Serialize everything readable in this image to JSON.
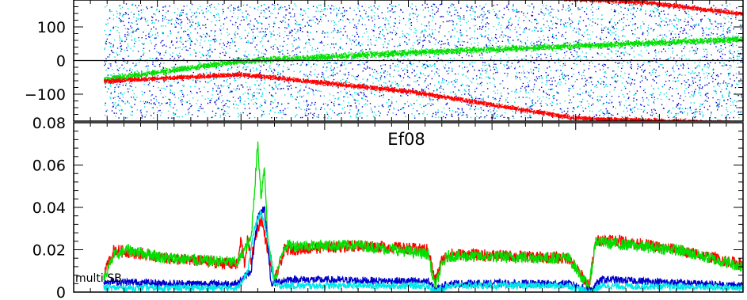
{
  "chart_data": [
    {
      "type": "scatter",
      "title": "",
      "xlabel": "",
      "ylabel": "",
      "ylim": [
        -180,
        180
      ],
      "yticks": [
        100,
        0,
        -100
      ],
      "ytick_labels": [
        "100",
        "0",
        "−100"
      ],
      "x_range": [
        0,
        1000
      ],
      "zero_line": true,
      "grid": false,
      "series": [
        {
          "color": "#0000cc",
          "kind": "random-scatter",
          "x_start": 45,
          "y_range": [
            -170,
            170
          ]
        },
        {
          "color": "#00e0e0",
          "kind": "random-scatter",
          "x_start": 45,
          "y_range": [
            -170,
            170
          ]
        },
        {
          "color": "#00e000",
          "kind": "band",
          "x": [
            45,
            250,
            500,
            750,
            1000
          ],
          "y": [
            -55,
            0,
            25,
            45,
            65
          ],
          "spread": 8
        },
        {
          "color": "#ff0000",
          "kind": "band",
          "x": [
            45,
            250,
            500,
            750,
            1000
          ],
          "y": [
            -60,
            -40,
            -90,
            -170,
            -185
          ],
          "spread": 6
        },
        {
          "color": "#ff0000",
          "kind": "band",
          "x": [
            730,
            850,
            1000
          ],
          "y": [
            185,
            175,
            140
          ],
          "spread": 6
        }
      ]
    },
    {
      "type": "line",
      "title": "Ef08",
      "xlabel": "",
      "ylabel": "",
      "ylim": [
        0,
        0.08
      ],
      "yticks": [
        0,
        0.02,
        0.04,
        0.06,
        0.08
      ],
      "ytick_labels": [
        "0",
        "0.02",
        "0.04",
        "0.06",
        "0.08"
      ],
      "x_range": [
        0,
        1000
      ],
      "annotation": "multi SB",
      "grid": false,
      "series": [
        {
          "color": "#ff0000",
          "x": [
            45,
            60,
            80,
            140,
            245,
            250,
            255,
            260,
            265,
            275,
            280,
            290,
            300,
            315,
            430,
            530,
            540,
            550,
            560,
            740,
            770,
            780,
            800,
            900,
            1000
          ],
          "y": [
            0.008,
            0.02,
            0.019,
            0.016,
            0.013,
            0.025,
            0.013,
            0.025,
            0.015,
            0.03,
            0.035,
            0.02,
            0.005,
            0.02,
            0.022,
            0.02,
            0.005,
            0.015,
            0.018,
            0.016,
            0.003,
            0.024,
            0.025,
            0.02,
            0.013
          ]
        },
        {
          "color": "#00e000",
          "x": [
            45,
            60,
            80,
            140,
            245,
            255,
            265,
            275,
            280,
            285,
            290,
            300,
            315,
            430,
            530,
            540,
            550,
            560,
            740,
            770,
            780,
            800,
            900,
            1000
          ],
          "y": [
            0.006,
            0.017,
            0.02,
            0.016,
            0.014,
            0.02,
            0.025,
            0.07,
            0.045,
            0.06,
            0.025,
            0.005,
            0.022,
            0.022,
            0.018,
            0.002,
            0.013,
            0.017,
            0.016,
            0.002,
            0.024,
            0.023,
            0.02,
            0.012
          ]
        },
        {
          "color": "#0000cc",
          "x": [
            45,
            150,
            245,
            265,
            275,
            285,
            295,
            320,
            530,
            540,
            560,
            740,
            770,
            790,
            1000
          ],
          "y": [
            0.005,
            0.004,
            0.004,
            0.01,
            0.035,
            0.04,
            0.004,
            0.006,
            0.005,
            0.001,
            0.004,
            0.004,
            0.001,
            0.006,
            0.003
          ]
        },
        {
          "color": "#00e8e8",
          "x": [
            45,
            150,
            245,
            260,
            270,
            280,
            290,
            300,
            320,
            530,
            540,
            560,
            740,
            770,
            790,
            1000
          ],
          "y": [
            0.002,
            0.002,
            0.002,
            0.01,
            0.03,
            0.038,
            0.025,
            0.003,
            0.003,
            0.003,
            0.0,
            0.003,
            0.003,
            0.0,
            0.003,
            0.002
          ]
        }
      ]
    }
  ]
}
